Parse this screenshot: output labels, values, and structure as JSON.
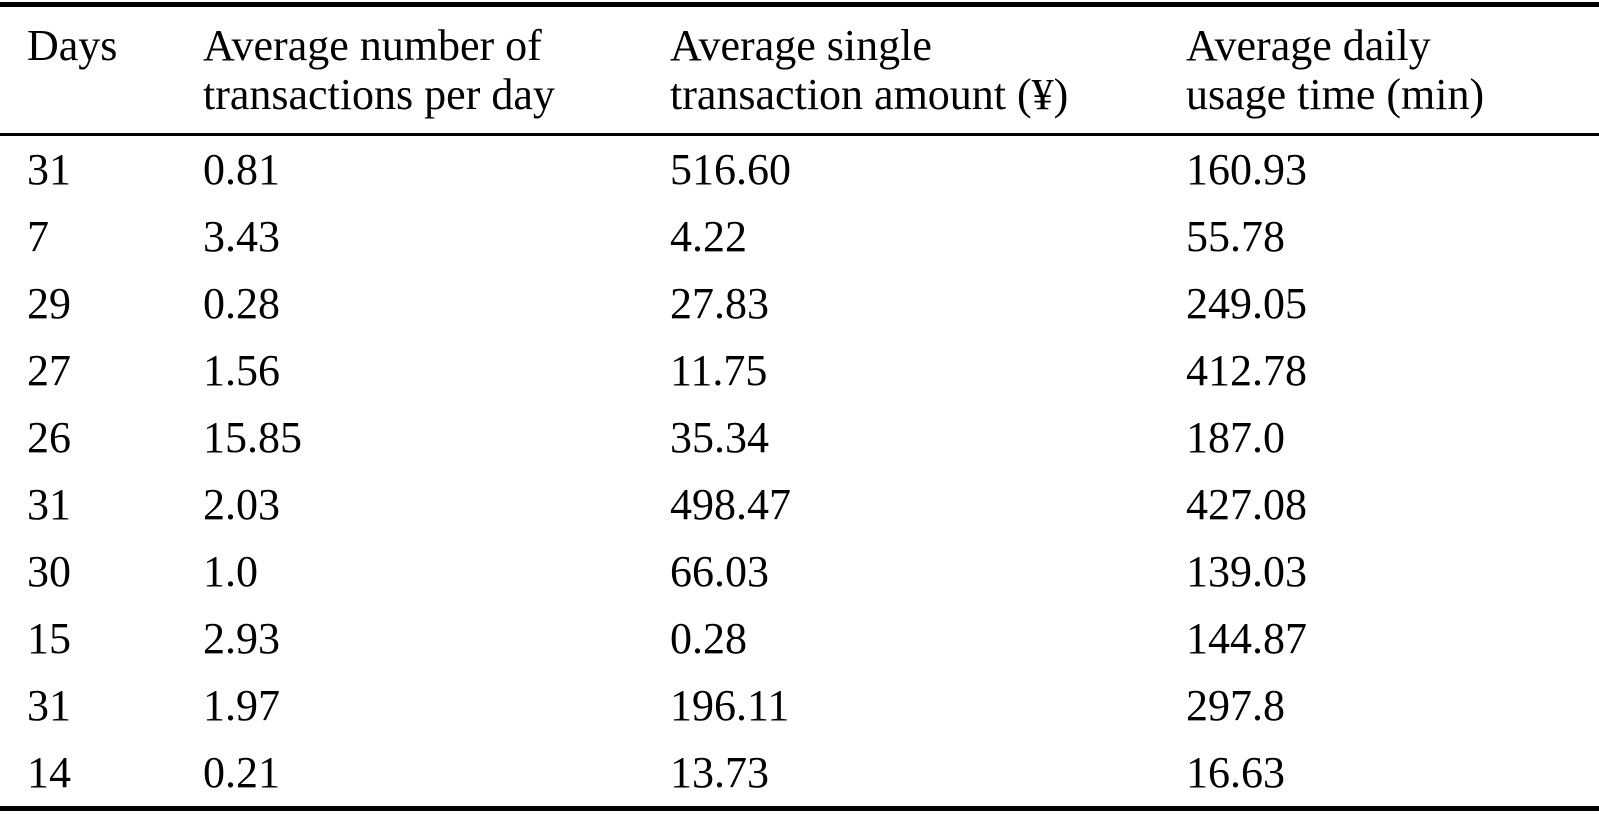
{
  "table": {
    "columns": [
      {
        "label": "Days"
      },
      {
        "label": "Average number of\ntransactions per day"
      },
      {
        "label": "Average single\ntransaction amount (¥)"
      },
      {
        "label": "Average daily\nusage time (min)"
      }
    ],
    "rows": [
      [
        "31",
        "0.81",
        "516.60",
        "160.93"
      ],
      [
        "7",
        "3.43",
        "4.22",
        "55.78"
      ],
      [
        "29",
        "0.28",
        "27.83",
        "249.05"
      ],
      [
        "27",
        "1.56",
        "11.75",
        "412.78"
      ],
      [
        "26",
        "15.85",
        "35.34",
        "187.0"
      ],
      [
        "31",
        "2.03",
        "498.47",
        "427.08"
      ],
      [
        "30",
        "1.0",
        "66.03",
        "139.03"
      ],
      [
        "15",
        "2.93",
        "0.28",
        "144.87"
      ],
      [
        "31",
        "1.97",
        "196.11",
        "297.8"
      ],
      [
        "14",
        "0.21",
        "13.73",
        "16.63"
      ]
    ],
    "colors": {
      "text": "#000000",
      "background": "#ffffff",
      "rule": "#000000"
    }
  }
}
